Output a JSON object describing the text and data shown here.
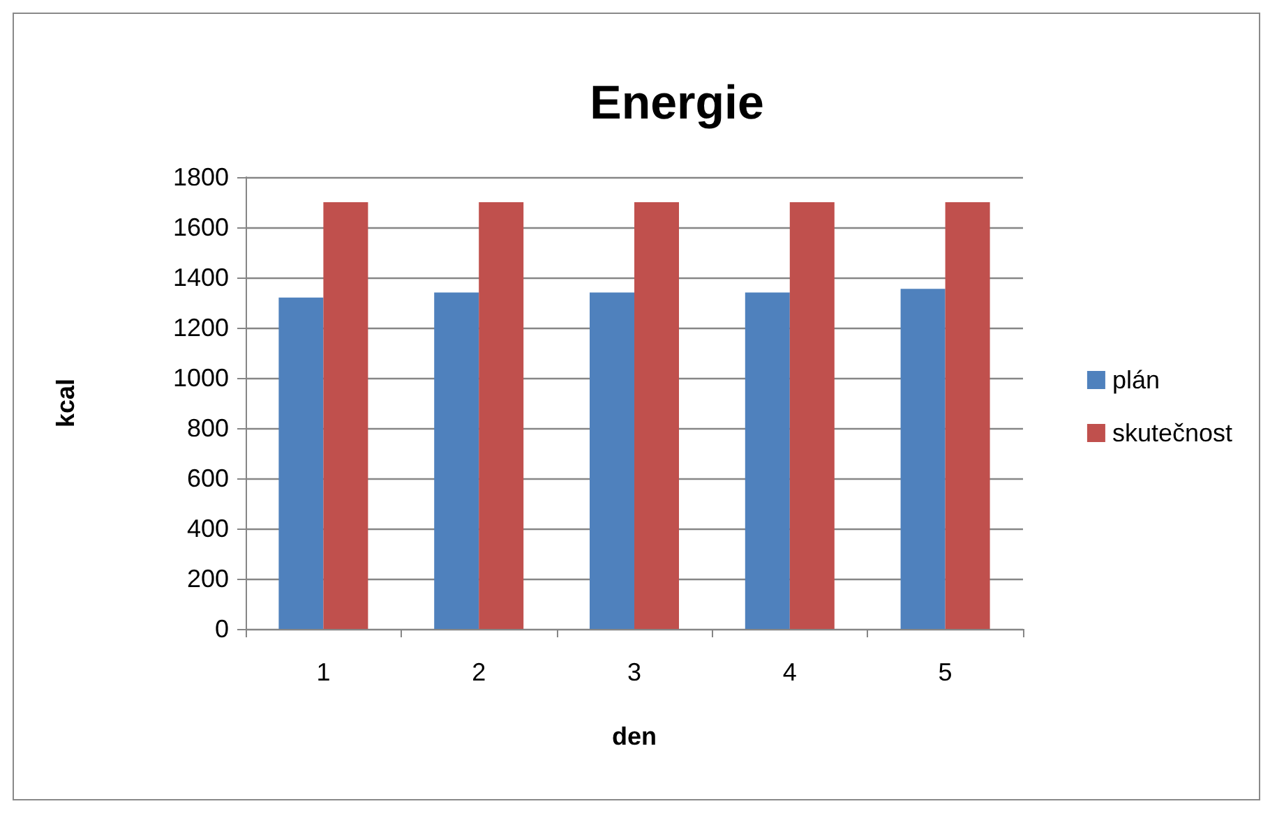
{
  "chart_data": {
    "type": "bar",
    "title": "Energie",
    "xlabel": "den",
    "ylabel": "kcal",
    "categories": [
      "1",
      "2",
      "3",
      "4",
      "5"
    ],
    "series": [
      {
        "name": "plán",
        "color": "#4f81bd",
        "values": [
          1320,
          1340,
          1340,
          1340,
          1355
        ]
      },
      {
        "name": "skutečnost",
        "color": "#c0504d",
        "values": [
          1700,
          1700,
          1700,
          1700,
          1700
        ]
      }
    ],
    "ylim": [
      0,
      1800
    ],
    "yticks": [
      0,
      200,
      400,
      600,
      800,
      1000,
      1200,
      1400,
      1600,
      1800
    ],
    "grid": "y",
    "legend": "right"
  }
}
